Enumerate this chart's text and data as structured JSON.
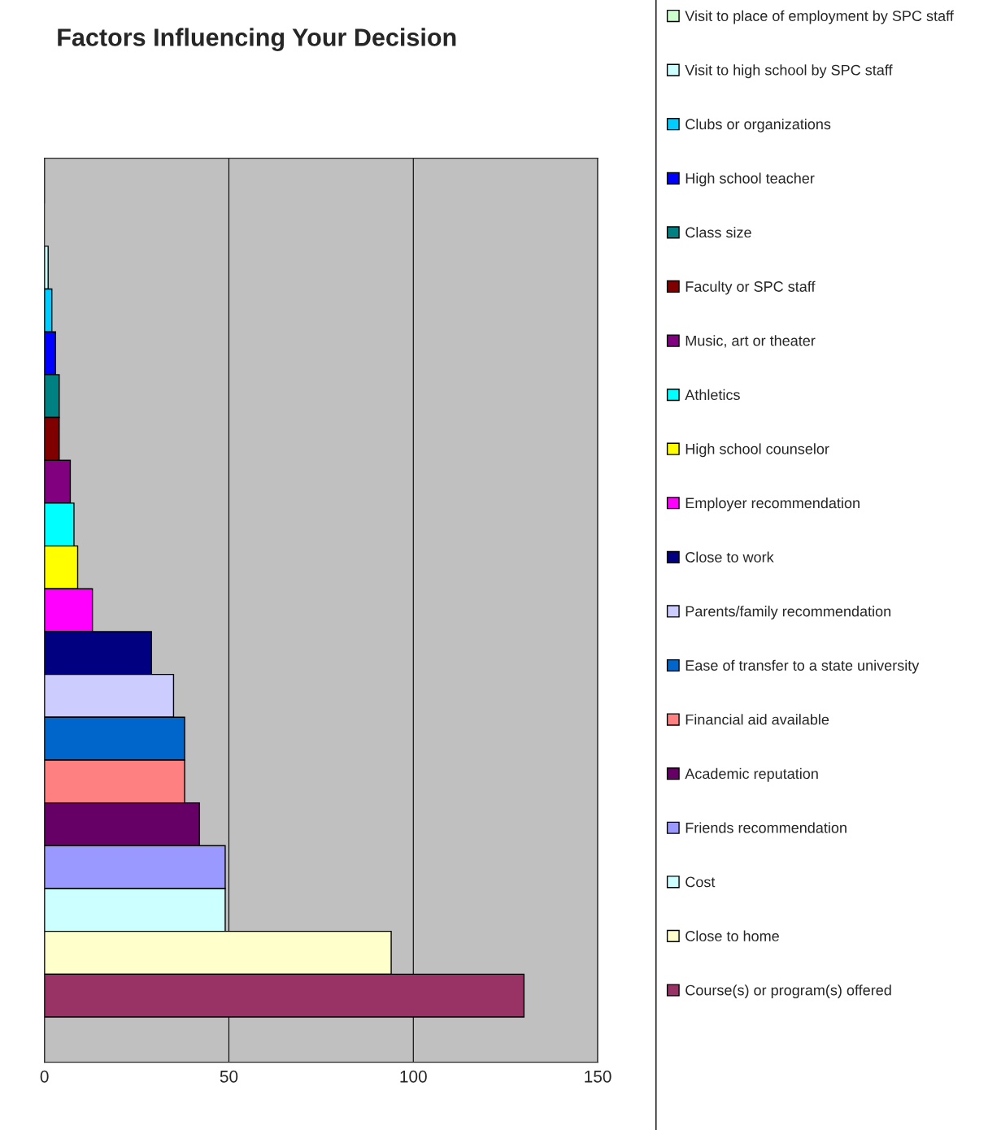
{
  "chart_data": {
    "type": "bar",
    "title": "Factors Influencing Your Decision",
    "orientation": "horizontal",
    "categories": [
      null
    ],
    "series": [
      {
        "name": "Visit to place of employment by SPC staff",
        "color": "#ccffcc",
        "values": [
          0
        ]
      },
      {
        "name": "Visit to high school by SPC staff",
        "color": "#ccffff",
        "values": [
          1
        ]
      },
      {
        "name": "Clubs or organizations",
        "color": "#00ccff",
        "values": [
          2
        ]
      },
      {
        "name": "High school teacher",
        "color": "#0000ff",
        "values": [
          3
        ]
      },
      {
        "name": "Class size",
        "color": "#008080",
        "values": [
          4
        ]
      },
      {
        "name": "Faculty or SPC staff",
        "color": "#800000",
        "values": [
          4
        ]
      },
      {
        "name": "Music, art or theater",
        "color": "#800080",
        "values": [
          7
        ]
      },
      {
        "name": "Athletics",
        "color": "#00ffff",
        "values": [
          8
        ]
      },
      {
        "name": "High school counselor",
        "color": "#ffff00",
        "values": [
          9
        ]
      },
      {
        "name": "Employer recommendation",
        "color": "#ff00ff",
        "values": [
          13
        ]
      },
      {
        "name": "Close to work",
        "color": "#000080",
        "values": [
          29
        ]
      },
      {
        "name": "Parents/family recommendation",
        "color": "#ccccff",
        "values": [
          35
        ]
      },
      {
        "name": "Ease of transfer to a state university",
        "color": "#0066cc",
        "values": [
          38
        ]
      },
      {
        "name": "Financial aid available",
        "color": "#ff8080",
        "values": [
          38
        ]
      },
      {
        "name": "Academic reputation",
        "color": "#660066",
        "values": [
          42
        ]
      },
      {
        "name": "Friends recommendation",
        "color": "#9999ff",
        "values": [
          49
        ]
      },
      {
        "name": "Cost",
        "color": "#ccffff",
        "values": [
          49
        ]
      },
      {
        "name": "Close to home",
        "color": "#ffffcc",
        "values": [
          94
        ]
      },
      {
        "name": "Course(s) or program(s) offered",
        "color": "#993366",
        "values": [
          130
        ]
      }
    ],
    "xlim": [
      0,
      150
    ],
    "xticks": [
      0,
      50,
      100,
      150
    ],
    "grid": "x",
    "legend": "right",
    "tick_labels": "x"
  }
}
